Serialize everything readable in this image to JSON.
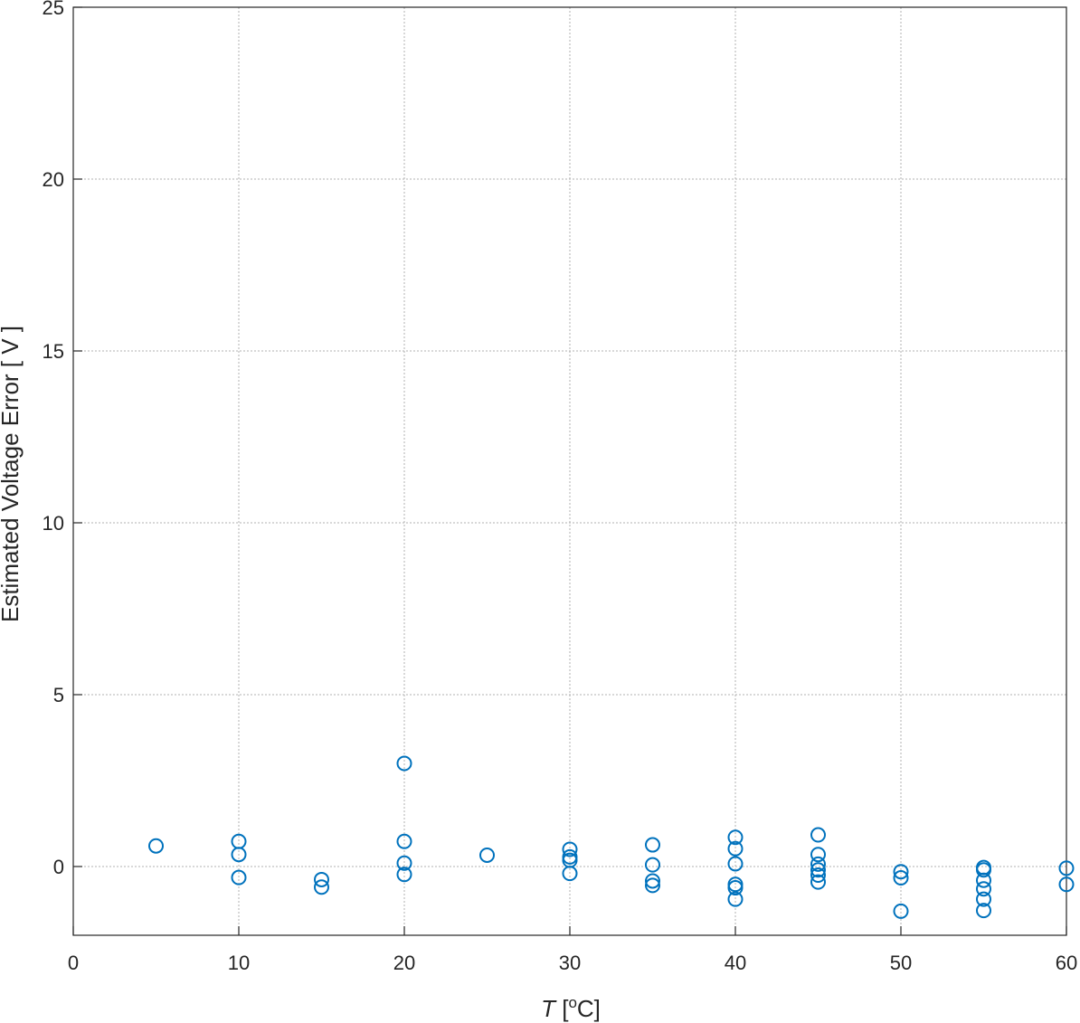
{
  "chart_data": {
    "type": "scatter",
    "xlabel_main": "T",
    "xlabel_unit_open": " [",
    "xlabel_unit_sup": "o",
    "xlabel_unit_rest": "C]",
    "ylabel": "Estimated Voltage Error [ V ]",
    "xlim": [
      0,
      60
    ],
    "ylim": [
      -2,
      25
    ],
    "xticks": [
      0,
      10,
      20,
      30,
      40,
      50,
      60
    ],
    "yticks": [
      0,
      5,
      10,
      15,
      20,
      25
    ],
    "grid": true,
    "marker": "circle-open",
    "color": "#0072BD",
    "points": [
      {
        "x": 5,
        "y": 0.6
      },
      {
        "x": 10,
        "y": 0.73
      },
      {
        "x": 10,
        "y": 0.35
      },
      {
        "x": 10,
        "y": -0.32
      },
      {
        "x": 15,
        "y": -0.38
      },
      {
        "x": 15,
        "y": -0.6
      },
      {
        "x": 20,
        "y": 3.0
      },
      {
        "x": 20,
        "y": 0.73
      },
      {
        "x": 20,
        "y": 0.1
      },
      {
        "x": 20,
        "y": -0.23
      },
      {
        "x": 25,
        "y": 0.33
      },
      {
        "x": 30,
        "y": 0.5
      },
      {
        "x": 30,
        "y": 0.28
      },
      {
        "x": 30,
        "y": 0.18
      },
      {
        "x": 30,
        "y": -0.2
      },
      {
        "x": 35,
        "y": 0.63
      },
      {
        "x": 35,
        "y": 0.05
      },
      {
        "x": 35,
        "y": -0.42
      },
      {
        "x": 35,
        "y": -0.55
      },
      {
        "x": 40,
        "y": 0.85
      },
      {
        "x": 40,
        "y": 0.52
      },
      {
        "x": 40,
        "y": 0.08
      },
      {
        "x": 40,
        "y": -0.52
      },
      {
        "x": 40,
        "y": -0.62
      },
      {
        "x": 40,
        "y": -0.95
      },
      {
        "x": 45,
        "y": 0.92
      },
      {
        "x": 45,
        "y": 0.35
      },
      {
        "x": 45,
        "y": 0.07
      },
      {
        "x": 45,
        "y": -0.1
      },
      {
        "x": 45,
        "y": -0.25
      },
      {
        "x": 45,
        "y": -0.45
      },
      {
        "x": 50,
        "y": -0.15
      },
      {
        "x": 50,
        "y": -0.33
      },
      {
        "x": 50,
        "y": -1.3
      },
      {
        "x": 55,
        "y": -0.03
      },
      {
        "x": 55,
        "y": -0.1
      },
      {
        "x": 55,
        "y": -0.4
      },
      {
        "x": 55,
        "y": -0.65
      },
      {
        "x": 55,
        "y": -0.95
      },
      {
        "x": 55,
        "y": -1.28
      },
      {
        "x": 60,
        "y": -0.05
      },
      {
        "x": 60,
        "y": -0.52
      }
    ]
  }
}
